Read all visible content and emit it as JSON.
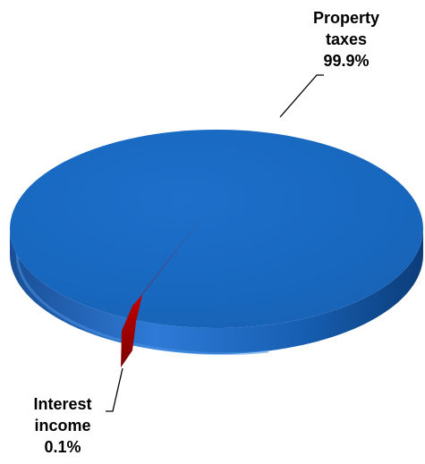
{
  "chart_data": {
    "type": "pie",
    "style": "3d",
    "categories": [
      "Property taxes",
      "Interest income"
    ],
    "values": [
      99.9,
      0.1
    ],
    "data_labels": [
      {
        "line1": "Property",
        "line2": "taxes",
        "line3": "99.9%"
      },
      {
        "line1": "Interest",
        "line2": "income",
        "line3": "0.1%"
      }
    ],
    "colors": [
      "#1565C0",
      "#A50000"
    ],
    "legend": "none"
  }
}
